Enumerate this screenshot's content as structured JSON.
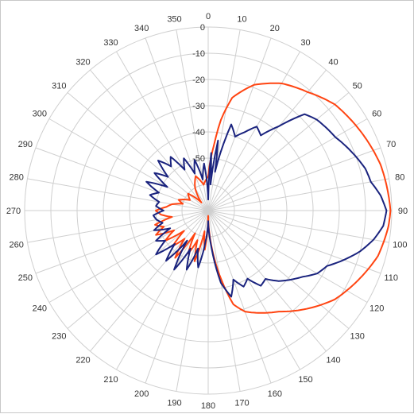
{
  "chart_data": {
    "type": "polar-line",
    "angle_unit": "degrees",
    "angle_zero": "top",
    "angle_direction": "clockwise",
    "angle_ticks": [
      0,
      10,
      20,
      30,
      40,
      50,
      60,
      70,
      80,
      90,
      100,
      110,
      120,
      130,
      140,
      150,
      160,
      170,
      180,
      190,
      200,
      210,
      220,
      230,
      240,
      250,
      260,
      270,
      280,
      290,
      300,
      310,
      320,
      330,
      340,
      350
    ],
    "radial_unit": "dB",
    "radial_range": [
      -70,
      0
    ],
    "radial_ticks": [
      0,
      -10,
      -20,
      -30,
      -40,
      -50
    ],
    "radial_tick_labels": [
      "0",
      "-10",
      "-20",
      "-30",
      "-40",
      "-50"
    ],
    "grid": true,
    "series": [
      {
        "color": "#ff4411",
        "values": [
          [
            0,
            -57
          ],
          [
            5,
            -45
          ],
          [
            8,
            -35
          ],
          [
            12,
            -26
          ],
          [
            20,
            -19
          ],
          [
            30,
            -14
          ],
          [
            40,
            -11
          ],
          [
            45,
            -9
          ],
          [
            50,
            -7
          ],
          [
            55,
            -6
          ],
          [
            60,
            -5
          ],
          [
            65,
            -4
          ],
          [
            70,
            -3
          ],
          [
            75,
            -2
          ],
          [
            80,
            -1.5
          ],
          [
            85,
            -1
          ],
          [
            90,
            -0.5
          ],
          [
            95,
            -1
          ],
          [
            100,
            -2
          ],
          [
            105,
            -3
          ],
          [
            110,
            -5
          ],
          [
            115,
            -7
          ],
          [
            120,
            -9
          ],
          [
            125,
            -11
          ],
          [
            130,
            -14
          ],
          [
            135,
            -17
          ],
          [
            140,
            -20
          ],
          [
            145,
            -23
          ],
          [
            150,
            -25
          ],
          [
            155,
            -27
          ],
          [
            160,
            -29
          ],
          [
            165,
            -33
          ],
          [
            170,
            -45
          ],
          [
            175,
            -57
          ],
          [
            180,
            -68
          ],
          [
            185,
            -55
          ],
          [
            190,
            -62
          ],
          [
            195,
            -50
          ],
          [
            200,
            -58
          ],
          [
            205,
            -52
          ],
          [
            210,
            -60
          ],
          [
            215,
            -48
          ],
          [
            220,
            -56
          ],
          [
            225,
            -51
          ],
          [
            230,
            -58
          ],
          [
            235,
            -50
          ],
          [
            240,
            -55
          ],
          [
            245,
            -48
          ],
          [
            250,
            -52
          ],
          [
            255,
            -49
          ],
          [
            260,
            -56
          ],
          [
            265,
            -52
          ],
          [
            270,
            -50
          ],
          [
            275,
            -54
          ],
          [
            280,
            -56
          ],
          [
            285,
            -60
          ],
          [
            290,
            -58
          ],
          [
            300,
            -62
          ],
          [
            310,
            -60
          ],
          [
            320,
            -66
          ],
          [
            330,
            -60
          ],
          [
            340,
            -56
          ],
          [
            350,
            -60
          ],
          [
            360,
            -57
          ]
        ]
      },
      {
        "color": "#1a237e",
        "values": [
          [
            0,
            -66
          ],
          [
            3,
            -48
          ],
          [
            5,
            -60
          ],
          [
            8,
            -43
          ],
          [
            10,
            -55
          ],
          [
            15,
            -36
          ],
          [
            20,
            -40
          ],
          [
            25,
            -37
          ],
          [
            30,
            -33
          ],
          [
            35,
            -35
          ],
          [
            40,
            -28
          ],
          [
            45,
            -18
          ],
          [
            50,
            -16
          ],
          [
            55,
            -15
          ],
          [
            60,
            -14
          ],
          [
            65,
            -12
          ],
          [
            70,
            -10
          ],
          [
            75,
            -8
          ],
          [
            80,
            -7
          ],
          [
            85,
            -4
          ],
          [
            90,
            -2
          ],
          [
            95,
            -3
          ],
          [
            100,
            -6
          ],
          [
            105,
            -10
          ],
          [
            110,
            -15
          ],
          [
            115,
            -20
          ],
          [
            120,
            -22
          ],
          [
            125,
            -26
          ],
          [
            130,
            -29
          ],
          [
            135,
            -32
          ],
          [
            140,
            -36
          ],
          [
            145,
            -35
          ],
          [
            150,
            -40
          ],
          [
            155,
            -38
          ],
          [
            160,
            -42
          ],
          [
            165,
            -36
          ],
          [
            170,
            -42
          ],
          [
            175,
            -56
          ],
          [
            180,
            -66
          ],
          [
            185,
            -58
          ],
          [
            190,
            -48
          ],
          [
            195,
            -55
          ],
          [
            200,
            -46
          ],
          [
            205,
            -54
          ],
          [
            210,
            -44
          ],
          [
            215,
            -56
          ],
          [
            220,
            -45
          ],
          [
            225,
            -52
          ],
          [
            230,
            -44
          ],
          [
            235,
            -50
          ],
          [
            240,
            -47
          ],
          [
            245,
            -54
          ],
          [
            250,
            -48
          ],
          [
            255,
            -52
          ],
          [
            260,
            -50
          ],
          [
            265,
            -49
          ],
          [
            270,
            -53
          ],
          [
            275,
            -50
          ],
          [
            280,
            -51
          ],
          [
            285,
            -47
          ],
          [
            290,
            -50
          ],
          [
            295,
            -44
          ],
          [
            300,
            -52
          ],
          [
            305,
            -45
          ],
          [
            310,
            -50
          ],
          [
            315,
            -43
          ],
          [
            320,
            -48
          ],
          [
            325,
            -45
          ],
          [
            330,
            -52
          ],
          [
            335,
            -48
          ],
          [
            340,
            -55
          ],
          [
            345,
            -50
          ],
          [
            350,
            -58
          ],
          [
            355,
            -52
          ],
          [
            360,
            -66
          ]
        ]
      }
    ]
  }
}
